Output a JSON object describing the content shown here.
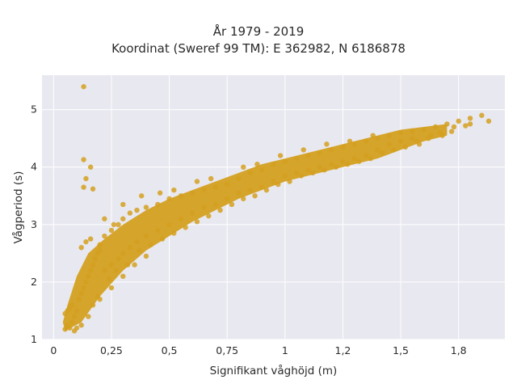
{
  "chart_data": {
    "type": "scatter",
    "title": "År 1979 - 2019",
    "subtitle": "Koordinat (Sweref 99 TM): E 362982, N 6186878",
    "xlabel": "Signifikant våghöjd (m)",
    "ylabel": "Vågperiod (s)",
    "xlim": [
      -0.05,
      1.95
    ],
    "ylim": [
      1.0,
      5.6
    ],
    "xticks": [
      0,
      0.25,
      0.5,
      0.75,
      1,
      1.25,
      1.5,
      1.75
    ],
    "xtick_labels": [
      "0",
      "0,25",
      "0,5",
      "0,75",
      "1",
      "1,2",
      "1,5",
      "1,8"
    ],
    "yticks": [
      1,
      2,
      3,
      4,
      5
    ],
    "ytick_labels": [
      "1",
      "2",
      "3",
      "4",
      "5"
    ],
    "grid": true,
    "marker_color": "#d4a020",
    "background_color": "#e8e8f0",
    "points": [
      [
        0.05,
        1.18
      ],
      [
        0.06,
        1.25
      ],
      [
        0.07,
        1.2
      ],
      [
        0.08,
        1.3
      ],
      [
        0.05,
        1.45
      ],
      [
        0.06,
        1.5
      ],
      [
        0.07,
        1.55
      ],
      [
        0.08,
        1.6
      ],
      [
        0.09,
        1.4
      ],
      [
        0.1,
        1.5
      ],
      [
        0.11,
        1.7
      ],
      [
        0.12,
        1.8
      ],
      [
        0.13,
        1.9
      ],
      [
        0.14,
        2.0
      ],
      [
        0.15,
        2.1
      ],
      [
        0.16,
        2.2
      ],
      [
        0.17,
        2.3
      ],
      [
        0.18,
        2.4
      ],
      [
        0.19,
        2.5
      ],
      [
        0.2,
        2.55
      ],
      [
        0.12,
        2.6
      ],
      [
        0.14,
        2.7
      ],
      [
        0.16,
        2.75
      ],
      [
        0.22,
        2.8
      ],
      [
        0.25,
        2.9
      ],
      [
        0.28,
        3.0
      ],
      [
        0.3,
        3.1
      ],
      [
        0.33,
        3.2
      ],
      [
        0.36,
        3.25
      ],
      [
        0.4,
        3.3
      ],
      [
        0.22,
        2.2
      ],
      [
        0.25,
        2.3
      ],
      [
        0.28,
        2.4
      ],
      [
        0.3,
        2.5
      ],
      [
        0.33,
        2.6
      ],
      [
        0.36,
        2.7
      ],
      [
        0.4,
        2.8
      ],
      [
        0.45,
        2.9
      ],
      [
        0.5,
        3.0
      ],
      [
        0.55,
        3.1
      ],
      [
        0.45,
        3.35
      ],
      [
        0.5,
        3.45
      ],
      [
        0.55,
        3.5
      ],
      [
        0.6,
        3.55
      ],
      [
        0.65,
        3.6
      ],
      [
        0.7,
        3.65
      ],
      [
        0.75,
        3.7
      ],
      [
        0.8,
        3.8
      ],
      [
        0.85,
        3.9
      ],
      [
        0.9,
        3.95
      ],
      [
        0.6,
        3.2
      ],
      [
        0.65,
        3.3
      ],
      [
        0.7,
        3.35
      ],
      [
        0.75,
        3.45
      ],
      [
        0.8,
        3.55
      ],
      [
        0.85,
        3.6
      ],
      [
        0.9,
        3.65
      ],
      [
        0.95,
        3.75
      ],
      [
        1.0,
        3.85
      ],
      [
        1.05,
        3.9
      ],
      [
        0.95,
        4.05
      ],
      [
        1.0,
        4.1
      ],
      [
        1.05,
        4.15
      ],
      [
        1.1,
        4.2
      ],
      [
        1.15,
        4.25
      ],
      [
        1.2,
        4.3
      ],
      [
        1.25,
        4.35
      ],
      [
        1.3,
        4.4
      ],
      [
        1.35,
        4.45
      ],
      [
        1.4,
        4.5
      ],
      [
        1.1,
        3.95
      ],
      [
        1.15,
        4.0
      ],
      [
        1.2,
        4.05
      ],
      [
        1.25,
        4.1
      ],
      [
        1.3,
        4.15
      ],
      [
        1.35,
        4.2
      ],
      [
        1.4,
        4.3
      ],
      [
        1.45,
        4.4
      ],
      [
        1.5,
        4.45
      ],
      [
        1.55,
        4.5
      ],
      [
        1.45,
        4.55
      ],
      [
        1.5,
        4.6
      ],
      [
        1.55,
        4.62
      ],
      [
        1.6,
        4.65
      ],
      [
        1.65,
        4.7
      ],
      [
        1.7,
        4.75
      ],
      [
        1.75,
        4.8
      ],
      [
        1.8,
        4.85
      ],
      [
        1.85,
        4.9
      ],
      [
        1.88,
        4.8
      ],
      [
        1.58,
        4.4
      ],
      [
        1.62,
        4.5
      ],
      [
        1.68,
        4.55
      ],
      [
        1.72,
        4.62
      ],
      [
        1.78,
        4.72
      ],
      [
        0.13,
        5.4
      ],
      [
        0.13,
        4.13
      ],
      [
        0.14,
        3.8
      ],
      [
        0.13,
        3.65
      ],
      [
        0.17,
        3.62
      ],
      [
        0.16,
        4.0
      ],
      [
        0.1,
        1.2
      ],
      [
        0.12,
        1.25
      ],
      [
        0.09,
        1.15
      ],
      [
        0.2,
        1.7
      ],
      [
        0.25,
        1.9
      ],
      [
        0.3,
        2.1
      ],
      [
        0.35,
        2.3
      ],
      [
        0.4,
        2.45
      ],
      [
        0.2,
        2.65
      ],
      [
        0.22,
        3.1
      ],
      [
        0.26,
        3.0
      ],
      [
        0.3,
        3.35
      ],
      [
        0.38,
        3.5
      ],
      [
        0.46,
        3.55
      ],
      [
        0.52,
        3.6
      ],
      [
        0.62,
        3.75
      ],
      [
        0.68,
        3.8
      ],
      [
        0.82,
        4.0
      ],
      [
        0.88,
        4.05
      ],
      [
        0.98,
        4.2
      ],
      [
        1.08,
        4.3
      ],
      [
        1.18,
        4.4
      ],
      [
        1.28,
        4.45
      ],
      [
        1.38,
        4.55
      ],
      [
        0.15,
        1.4
      ],
      [
        0.17,
        1.6
      ],
      [
        0.19,
        1.75
      ],
      [
        0.24,
        2.05
      ],
      [
        0.27,
        2.2
      ],
      [
        0.32,
        2.3
      ],
      [
        0.37,
        2.55
      ],
      [
        0.42,
        2.65
      ],
      [
        0.47,
        2.75
      ],
      [
        0.52,
        2.85
      ],
      [
        0.57,
        2.95
      ],
      [
        0.62,
        3.05
      ],
      [
        0.67,
        3.15
      ],
      [
        0.72,
        3.25
      ],
      [
        0.77,
        3.35
      ],
      [
        0.82,
        3.45
      ],
      [
        0.87,
        3.5
      ],
      [
        0.92,
        3.6
      ],
      [
        0.97,
        3.7
      ],
      [
        1.02,
        3.75
      ],
      [
        1.07,
        3.85
      ],
      [
        1.12,
        3.9
      ],
      [
        1.17,
        3.95
      ],
      [
        1.22,
        4.0
      ],
      [
        1.27,
        4.05
      ],
      [
        1.32,
        4.1
      ],
      [
        1.37,
        4.15
      ],
      [
        1.42,
        4.25
      ],
      [
        1.47,
        4.3
      ],
      [
        1.52,
        4.35
      ],
      [
        1.57,
        4.45
      ],
      [
        1.63,
        4.55
      ],
      [
        1.67,
        4.6
      ],
      [
        1.73,
        4.7
      ],
      [
        1.8,
        4.75
      ]
    ]
  }
}
